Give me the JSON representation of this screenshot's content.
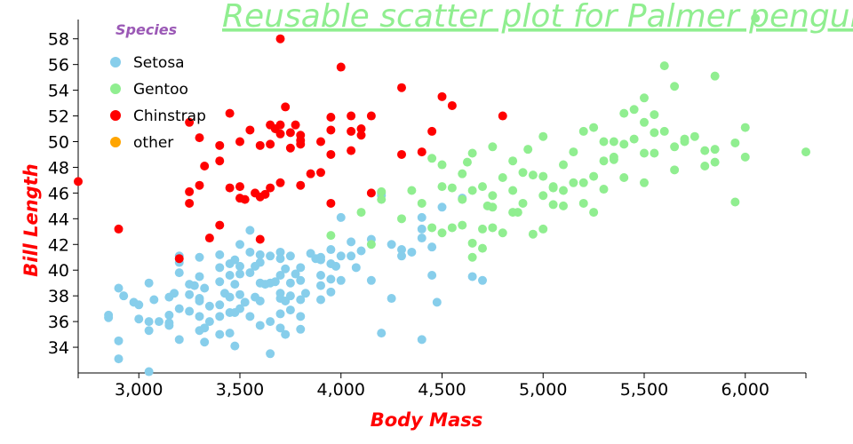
{
  "chart_data": {
    "type": "scatter",
    "title": "Reusable scatter plot for Palmer penguins",
    "xlabel": "Body Mass",
    "ylabel": "Bill Length",
    "xlim": [
      2700,
      6300
    ],
    "ylim": [
      32.0,
      59.5
    ],
    "x_ticks": [
      3000,
      3500,
      4000,
      4500,
      5000,
      5500,
      6000
    ],
    "x_tick_labels": [
      "3,000",
      "3,500",
      "4,000",
      "4,500",
      "5,000",
      "5,500",
      "6,000"
    ],
    "y_ticks": [
      34,
      36,
      38,
      40,
      42,
      44,
      46,
      48,
      50,
      52,
      54,
      56,
      58
    ],
    "y_tick_labels": [
      "34",
      "36",
      "38",
      "40",
      "42",
      "44",
      "46",
      "48",
      "50",
      "52",
      "54",
      "56",
      "58"
    ],
    "grid": false,
    "legend": {
      "title": "Species",
      "position": "top-left",
      "entries": [
        "Setosa",
        "Gentoo",
        "Chinstrap",
        "other"
      ]
    },
    "colors": {
      "Setosa": "#87ceeb",
      "Gentoo": "#90ee90",
      "Chinstrap": "#ff0000",
      "other": "#ffa500",
      "title": "#90ee90",
      "axis_label": "#ff0000",
      "legend_title": "#9b59b6"
    },
    "series": [
      {
        "name": "Setosa",
        "points": [
          [
            2850,
            36.5
          ],
          [
            2850,
            36.3
          ],
          [
            2900,
            38.6
          ],
          [
            2900,
            34.5
          ],
          [
            2900,
            33.1
          ],
          [
            2925,
            38.0
          ],
          [
            2975,
            37.5
          ],
          [
            3000,
            37.3
          ],
          [
            3000,
            36.2
          ],
          [
            3050,
            39.0
          ],
          [
            3050,
            36.0
          ],
          [
            3050,
            35.3
          ],
          [
            3050,
            32.1
          ],
          [
            3075,
            37.7
          ],
          [
            3100,
            36.0
          ],
          [
            3150,
            37.9
          ],
          [
            3150,
            36.5
          ],
          [
            3150,
            35.9
          ],
          [
            3150,
            35.7
          ],
          [
            3175,
            38.2
          ],
          [
            3200,
            41.1
          ],
          [
            3200,
            40.6
          ],
          [
            3200,
            39.8
          ],
          [
            3200,
            37.0
          ],
          [
            3200,
            34.6
          ],
          [
            3250,
            38.9
          ],
          [
            3250,
            38.1
          ],
          [
            3250,
            36.8
          ],
          [
            3275,
            38.8
          ],
          [
            3300,
            41.0
          ],
          [
            3300,
            39.5
          ],
          [
            3300,
            37.8
          ],
          [
            3300,
            37.6
          ],
          [
            3300,
            36.4
          ],
          [
            3325,
            38.6
          ],
          [
            3325,
            35.5
          ],
          [
            3325,
            34.4
          ],
          [
            3350,
            37.2
          ],
          [
            3350,
            36.0
          ],
          [
            3400,
            41.2
          ],
          [
            3400,
            40.2
          ],
          [
            3400,
            39.1
          ],
          [
            3400,
            37.3
          ],
          [
            3400,
            36.4
          ],
          [
            3400,
            35.0
          ],
          [
            3425,
            38.2
          ],
          [
            3450,
            40.5
          ],
          [
            3450,
            39.6
          ],
          [
            3450,
            37.9
          ],
          [
            3450,
            36.7
          ],
          [
            3450,
            35.1
          ],
          [
            3475,
            40.8
          ],
          [
            3475,
            38.9
          ],
          [
            3475,
            36.7
          ],
          [
            3475,
            34.1
          ],
          [
            3500,
            42.0
          ],
          [
            3500,
            40.3
          ],
          [
            3500,
            39.7
          ],
          [
            3500,
            38.1
          ],
          [
            3500,
            37.0
          ],
          [
            3525,
            37.5
          ],
          [
            3550,
            43.1
          ],
          [
            3550,
            41.4
          ],
          [
            3550,
            39.8
          ],
          [
            3550,
            36.4
          ],
          [
            3575,
            40.3
          ],
          [
            3575,
            37.9
          ],
          [
            3600,
            41.2
          ],
          [
            3600,
            40.6
          ],
          [
            3600,
            39.0
          ],
          [
            3600,
            37.6
          ],
          [
            3600,
            35.7
          ],
          [
            3625,
            38.9
          ],
          [
            3650,
            39.0
          ],
          [
            3650,
            36.0
          ],
          [
            3650,
            33.5
          ],
          [
            3675,
            39.1
          ],
          [
            3700,
            41.4
          ],
          [
            3700,
            40.9
          ],
          [
            3700,
            39.6
          ],
          [
            3700,
            38.2
          ],
          [
            3700,
            37.8
          ],
          [
            3700,
            36.6
          ],
          [
            3700,
            35.5
          ],
          [
            3725,
            40.1
          ],
          [
            3725,
            37.6
          ],
          [
            3725,
            35.0
          ],
          [
            3750,
            41.1
          ],
          [
            3750,
            39.0
          ],
          [
            3750,
            38.0
          ],
          [
            3750,
            36.9
          ],
          [
            3775,
            39.7
          ],
          [
            3800,
            40.2
          ],
          [
            3800,
            39.2
          ],
          [
            3800,
            37.7
          ],
          [
            3800,
            36.4
          ],
          [
            3800,
            35.4
          ],
          [
            3825,
            38.2
          ],
          [
            3850,
            41.3
          ],
          [
            3875,
            40.9
          ],
          [
            3900,
            41.0
          ],
          [
            3900,
            39.6
          ],
          [
            3900,
            38.8
          ],
          [
            3900,
            37.7
          ],
          [
            3950,
            41.6
          ],
          [
            3950,
            40.5
          ],
          [
            3950,
            39.3
          ],
          [
            3950,
            38.3
          ],
          [
            3975,
            40.3
          ],
          [
            4000,
            44.1
          ],
          [
            4000,
            41.1
          ],
          [
            4000,
            39.2
          ],
          [
            4050,
            42.2
          ],
          [
            4050,
            41.1
          ],
          [
            4075,
            40.2
          ],
          [
            4100,
            41.5
          ],
          [
            4150,
            42.4
          ],
          [
            4150,
            39.2
          ],
          [
            4200,
            45.8
          ],
          [
            4200,
            35.1
          ],
          [
            4250,
            42.0
          ],
          [
            4250,
            37.8
          ],
          [
            4300,
            41.6
          ],
          [
            4300,
            41.1
          ],
          [
            4350,
            41.4
          ],
          [
            4400,
            44.1
          ],
          [
            4400,
            42.5
          ],
          [
            4400,
            34.6
          ],
          [
            4450,
            39.6
          ],
          [
            4450,
            41.8
          ],
          [
            4475,
            37.5
          ],
          [
            4500,
            44.9
          ],
          [
            4600,
            45.6
          ],
          [
            4650,
            39.5
          ],
          [
            4700,
            39.2
          ],
          [
            4200,
            46.0
          ],
          [
            4400,
            43.2
          ],
          [
            3650,
            41.1
          ],
          [
            3900,
            40.8
          ],
          [
            3300,
            35.3
          ]
        ]
      },
      {
        "name": "Gentoo",
        "points": [
          [
            3950,
            42.7
          ],
          [
            4100,
            44.5
          ],
          [
            4150,
            42.0
          ],
          [
            4200,
            46.1
          ],
          [
            4200,
            45.5
          ],
          [
            4300,
            44.0
          ],
          [
            4350,
            46.2
          ],
          [
            4400,
            45.2
          ],
          [
            4450,
            48.7
          ],
          [
            4450,
            43.3
          ],
          [
            4500,
            46.5
          ],
          [
            4500,
            42.9
          ],
          [
            4550,
            46.4
          ],
          [
            4550,
            43.3
          ],
          [
            4600,
            47.5
          ],
          [
            4600,
            45.5
          ],
          [
            4600,
            43.5
          ],
          [
            4625,
            48.4
          ],
          [
            4650,
            49.1
          ],
          [
            4650,
            46.2
          ],
          [
            4650,
            41.0
          ],
          [
            4700,
            46.5
          ],
          [
            4700,
            43.2
          ],
          [
            4700,
            41.7
          ],
          [
            4725,
            45.0
          ],
          [
            4750,
            49.6
          ],
          [
            4750,
            45.8
          ],
          [
            4750,
            43.3
          ],
          [
            4800,
            47.2
          ],
          [
            4800,
            42.9
          ],
          [
            4850,
            48.5
          ],
          [
            4850,
            46.2
          ],
          [
            4875,
            44.5
          ],
          [
            4900,
            47.6
          ],
          [
            4900,
            45.2
          ],
          [
            4925,
            49.4
          ],
          [
            4950,
            47.4
          ],
          [
            4950,
            42.8
          ],
          [
            5000,
            50.4
          ],
          [
            5000,
            47.3
          ],
          [
            5000,
            45.8
          ],
          [
            5000,
            43.2
          ],
          [
            5050,
            46.4
          ],
          [
            5050,
            45.1
          ],
          [
            5100,
            48.2
          ],
          [
            5100,
            46.2
          ],
          [
            5100,
            45.0
          ],
          [
            5150,
            49.2
          ],
          [
            5200,
            50.8
          ],
          [
            5200,
            46.8
          ],
          [
            5200,
            45.2
          ],
          [
            5250,
            51.1
          ],
          [
            5250,
            47.3
          ],
          [
            5250,
            44.5
          ],
          [
            5300,
            50.0
          ],
          [
            5300,
            48.5
          ],
          [
            5300,
            46.3
          ],
          [
            5350,
            50.0
          ],
          [
            5350,
            48.6
          ],
          [
            5400,
            49.8
          ],
          [
            5400,
            52.2
          ],
          [
            5400,
            47.2
          ],
          [
            5450,
            52.5
          ],
          [
            5500,
            53.4
          ],
          [
            5500,
            51.5
          ],
          [
            5500,
            49.1
          ],
          [
            5500,
            46.8
          ],
          [
            5550,
            50.7
          ],
          [
            5550,
            52.1
          ],
          [
            5550,
            49.1
          ],
          [
            5600,
            55.9
          ],
          [
            5600,
            50.8
          ],
          [
            5650,
            54.3
          ],
          [
            5650,
            49.6
          ],
          [
            5650,
            47.8
          ],
          [
            5700,
            50.2
          ],
          [
            5700,
            50.0
          ],
          [
            5750,
            50.4
          ],
          [
            5800,
            49.3
          ],
          [
            5800,
            48.1
          ],
          [
            5850,
            55.1
          ],
          [
            5850,
            49.4
          ],
          [
            5850,
            48.4
          ],
          [
            5950,
            49.9
          ],
          [
            5950,
            45.3
          ],
          [
            6000,
            51.1
          ],
          [
            6000,
            48.8
          ],
          [
            6300,
            49.2
          ],
          [
            4500,
            48.2
          ],
          [
            4650,
            42.1
          ],
          [
            4750,
            44.9
          ],
          [
            4850,
            44.5
          ],
          [
            5050,
            46.5
          ],
          [
            5150,
            46.8
          ],
          [
            5350,
            48.8
          ],
          [
            5450,
            50.2
          ],
          [
            6050,
            59.6
          ]
        ]
      },
      {
        "name": "Chinstrap",
        "points": [
          [
            2700,
            46.9
          ],
          [
            2900,
            43.2
          ],
          [
            3200,
            40.9
          ],
          [
            3250,
            51.5
          ],
          [
            3250,
            46.1
          ],
          [
            3250,
            45.2
          ],
          [
            3300,
            50.3
          ],
          [
            3300,
            46.6
          ],
          [
            3325,
            48.1
          ],
          [
            3350,
            42.5
          ],
          [
            3400,
            49.7
          ],
          [
            3400,
            48.5
          ],
          [
            3400,
            43.5
          ],
          [
            3450,
            52.2
          ],
          [
            3450,
            46.4
          ],
          [
            3500,
            50.0
          ],
          [
            3500,
            46.5
          ],
          [
            3500,
            45.6
          ],
          [
            3525,
            45.5
          ],
          [
            3550,
            50.9
          ],
          [
            3575,
            46.0
          ],
          [
            3600,
            49.7
          ],
          [
            3600,
            45.7
          ],
          [
            3600,
            42.4
          ],
          [
            3625,
            45.9
          ],
          [
            3650,
            51.3
          ],
          [
            3650,
            49.8
          ],
          [
            3650,
            46.4
          ],
          [
            3675,
            51.0
          ],
          [
            3700,
            58.0
          ],
          [
            3700,
            50.6
          ],
          [
            3700,
            51.3
          ],
          [
            3700,
            46.8
          ],
          [
            3725,
            52.7
          ],
          [
            3750,
            50.7
          ],
          [
            3750,
            49.5
          ],
          [
            3775,
            51.3
          ],
          [
            3800,
            50.5
          ],
          [
            3800,
            50.1
          ],
          [
            3800,
            49.8
          ],
          [
            3800,
            46.6
          ],
          [
            3850,
            47.5
          ],
          [
            3900,
            50.0
          ],
          [
            3900,
            47.6
          ],
          [
            3950,
            51.9
          ],
          [
            3950,
            50.9
          ],
          [
            3950,
            49.0
          ],
          [
            3950,
            45.2
          ],
          [
            4000,
            55.8
          ],
          [
            4050,
            52.0
          ],
          [
            4050,
            50.8
          ],
          [
            4050,
            49.3
          ],
          [
            4100,
            51.0
          ],
          [
            4100,
            50.5
          ],
          [
            4150,
            52.0
          ],
          [
            4150,
            46.0
          ],
          [
            4300,
            54.2
          ],
          [
            4300,
            49.0
          ],
          [
            4400,
            49.2
          ],
          [
            4450,
            50.8
          ],
          [
            4500,
            53.5
          ],
          [
            4550,
            52.8
          ],
          [
            4800,
            52.0
          ]
        ]
      },
      {
        "name": "other",
        "points": []
      }
    ]
  }
}
